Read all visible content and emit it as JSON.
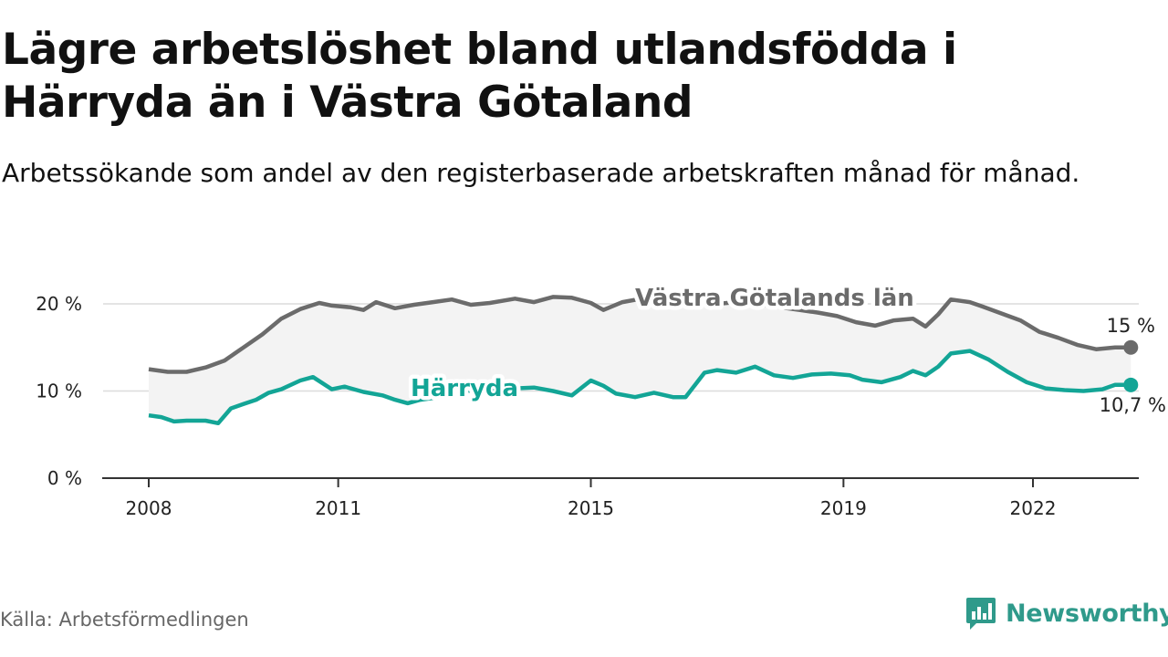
{
  "title": "Lägre arbetslöshet bland utlandsfödda i Härryda än i Västra Götaland",
  "subtitle": "Arbetssökande som andel av den registerbaserade arbetskraften månad för månad.",
  "source": "Källa: Arbetsförmedlingen",
  "brand": "Newsworthy",
  "colors": {
    "region": "#6b6b6b",
    "harryda": "#13a596",
    "band": "#f3f3f3",
    "grid": "#dcdcdc",
    "axis": "#333333",
    "brand": "#2f9a8b"
  },
  "chart_data": {
    "type": "line",
    "title": "Lägre arbetslöshet bland utlandsfödda i Härryda än i Västra Götaland",
    "xlabel": "",
    "ylabel": "",
    "ylim": [
      0,
      20
    ],
    "xlim": [
      2008,
      2023.8
    ],
    "y_ticks": [
      0,
      10,
      20
    ],
    "y_tick_labels": [
      "0 %",
      "10 %",
      "20 %"
    ],
    "x_ticks": [
      2008,
      2011,
      2015,
      2019,
      2022
    ],
    "x_tick_labels": [
      "2008",
      "2011",
      "2015",
      "2019",
      "2022"
    ],
    "series": [
      {
        "name": "Västra Götalands län",
        "end_label": "15 %",
        "end_value": 15.0,
        "points": [
          [
            2008.0,
            12.5
          ],
          [
            2008.3,
            12.2
          ],
          [
            2008.6,
            12.2
          ],
          [
            2008.9,
            12.7
          ],
          [
            2009.2,
            13.5
          ],
          [
            2009.5,
            15.0
          ],
          [
            2009.8,
            16.5
          ],
          [
            2010.1,
            18.3
          ],
          [
            2010.4,
            19.4
          ],
          [
            2010.7,
            20.1
          ],
          [
            2010.9,
            19.8
          ],
          [
            2011.2,
            19.6
          ],
          [
            2011.4,
            19.3
          ],
          [
            2011.6,
            20.2
          ],
          [
            2011.9,
            19.5
          ],
          [
            2012.2,
            19.9
          ],
          [
            2012.5,
            20.2
          ],
          [
            2012.8,
            20.5
          ],
          [
            2013.1,
            19.9
          ],
          [
            2013.4,
            20.1
          ],
          [
            2013.8,
            20.6
          ],
          [
            2014.1,
            20.2
          ],
          [
            2014.4,
            20.8
          ],
          [
            2014.7,
            20.7
          ],
          [
            2015.0,
            20.1
          ],
          [
            2015.2,
            19.3
          ],
          [
            2015.5,
            20.2
          ],
          [
            2015.8,
            20.6
          ],
          [
            2016.1,
            20.3
          ],
          [
            2016.4,
            20.4
          ],
          [
            2016.7,
            20.2
          ],
          [
            2017.0,
            20.0
          ],
          [
            2017.3,
            20.2
          ],
          [
            2017.7,
            19.9
          ],
          [
            2018.0,
            19.6
          ],
          [
            2018.3,
            19.3
          ],
          [
            2018.6,
            19.0
          ],
          [
            2018.9,
            18.6
          ],
          [
            2019.2,
            17.9
          ],
          [
            2019.5,
            17.5
          ],
          [
            2019.8,
            18.1
          ],
          [
            2020.1,
            18.3
          ],
          [
            2020.3,
            17.4
          ],
          [
            2020.5,
            18.8
          ],
          [
            2020.7,
            20.5
          ],
          [
            2021.0,
            20.2
          ],
          [
            2021.2,
            19.7
          ],
          [
            2021.5,
            18.9
          ],
          [
            2021.8,
            18.1
          ],
          [
            2022.1,
            16.8
          ],
          [
            2022.4,
            16.1
          ],
          [
            2022.7,
            15.3
          ],
          [
            2023.0,
            14.8
          ],
          [
            2023.3,
            15.0
          ],
          [
            2023.55,
            15.0
          ]
        ]
      },
      {
        "name": "Härryda",
        "end_label": "10,7 %",
        "end_value": 10.7,
        "points": [
          [
            2008.0,
            7.2
          ],
          [
            2008.2,
            7.0
          ],
          [
            2008.4,
            6.5
          ],
          [
            2008.6,
            6.6
          ],
          [
            2008.9,
            6.6
          ],
          [
            2009.1,
            6.3
          ],
          [
            2009.3,
            8.0
          ],
          [
            2009.5,
            8.5
          ],
          [
            2009.7,
            9.0
          ],
          [
            2009.9,
            9.8
          ],
          [
            2010.1,
            10.2
          ],
          [
            2010.4,
            11.2
          ],
          [
            2010.6,
            11.6
          ],
          [
            2010.9,
            10.2
          ],
          [
            2011.1,
            10.5
          ],
          [
            2011.4,
            9.9
          ],
          [
            2011.7,
            9.5
          ],
          [
            2011.9,
            9.0
          ],
          [
            2012.1,
            8.6
          ],
          [
            2012.3,
            9.0
          ],
          [
            2012.7,
            9.4
          ],
          [
            2013.0,
            10.0
          ],
          [
            2013.4,
            10.2
          ],
          [
            2013.8,
            10.3
          ],
          [
            2014.1,
            10.4
          ],
          [
            2014.4,
            10.0
          ],
          [
            2014.7,
            9.5
          ],
          [
            2015.0,
            11.2
          ],
          [
            2015.2,
            10.6
          ],
          [
            2015.4,
            9.7
          ],
          [
            2015.7,
            9.3
          ],
          [
            2016.0,
            9.8
          ],
          [
            2016.3,
            9.3
          ],
          [
            2016.5,
            9.3
          ],
          [
            2016.8,
            12.1
          ],
          [
            2017.0,
            12.4
          ],
          [
            2017.3,
            12.1
          ],
          [
            2017.6,
            12.8
          ],
          [
            2017.9,
            11.8
          ],
          [
            2018.2,
            11.5
          ],
          [
            2018.5,
            11.9
          ],
          [
            2018.8,
            12.0
          ],
          [
            2019.1,
            11.8
          ],
          [
            2019.3,
            11.3
          ],
          [
            2019.6,
            11.0
          ],
          [
            2019.9,
            11.6
          ],
          [
            2020.1,
            12.3
          ],
          [
            2020.3,
            11.8
          ],
          [
            2020.5,
            12.8
          ],
          [
            2020.7,
            14.3
          ],
          [
            2021.0,
            14.6
          ],
          [
            2021.3,
            13.6
          ],
          [
            2021.6,
            12.2
          ],
          [
            2021.9,
            11.0
          ],
          [
            2022.2,
            10.3
          ],
          [
            2022.5,
            10.1
          ],
          [
            2022.8,
            10.0
          ],
          [
            2023.1,
            10.2
          ],
          [
            2023.3,
            10.7
          ],
          [
            2023.55,
            10.7
          ]
        ]
      }
    ]
  }
}
